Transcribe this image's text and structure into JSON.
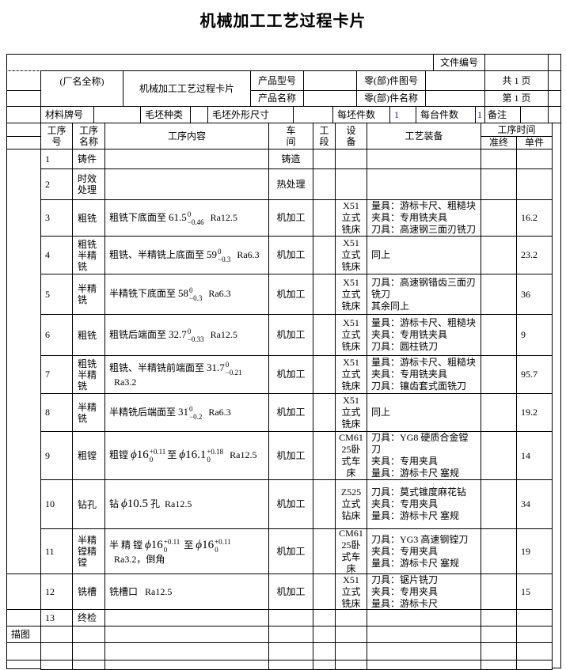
{
  "title": "机械加工工艺过程卡片",
  "header": {
    "doc_no_label": "文件编号",
    "factory": "(厂名全称)",
    "card_name": "机械加工工艺过程卡片",
    "product_model_label": "产品型号",
    "product_name_label": "产品名称",
    "part_drawing_label": "零(部)件图号",
    "part_name_label": "零(部)件名称",
    "total_pages": "共 1 页",
    "page_no": "第 1 页",
    "material_label": "材料牌号",
    "blank_type_label": "毛坯种类",
    "blank_size_label": "毛坯外形尺寸",
    "per_blank_label": "每坯件数",
    "per_blank_value": "1",
    "per_unit_label": "每台件数",
    "per_unit_value": "1",
    "remark_label": "备注"
  },
  "columns": {
    "no": "工序号",
    "name": "工序名称",
    "content": "工序内容",
    "workshop": "车间",
    "section": "工段",
    "equipment": "设备",
    "tooling": "工艺装备",
    "time": "工序时间",
    "prep": "准终",
    "unit": "单件"
  },
  "rows": [
    {
      "no": "1",
      "name": "铸件",
      "workshop": "铸造"
    },
    {
      "no": "2",
      "name": "时效处理",
      "workshop": "热处理"
    },
    {
      "no": "3",
      "name": "粗铣",
      "c": {
        "pre": "粗铣下底面至 ",
        "base": "61.5",
        "up": "0",
        "lo": "−0.46",
        "post": "Ra12.5"
      },
      "workshop": "机加工",
      "equipment": "X51立式铣床",
      "tooling": [
        "量具：游标卡尺、粗糙块",
        "夹具：专用铣夹具",
        "刀具：高速钢三面刃铣刀"
      ],
      "unit": "16.2"
    },
    {
      "no": "4",
      "name": "粗铣半精铣",
      "c": {
        "pre": "粗铣、半精铣上底面至 ",
        "base": "59",
        "up": "0",
        "lo": "−0.3",
        "post": "Ra6.3"
      },
      "workshop": "机加工",
      "equipment": "X51立式铣床",
      "tooling": [
        "同上"
      ],
      "unit": "23.2"
    },
    {
      "no": "5",
      "name": "半精铣",
      "c": {
        "pre": "半精铣下底面至 ",
        "base": "58",
        "up": "0",
        "lo": "−0.3",
        "post": "Ra6.3"
      },
      "workshop": "机加工",
      "equipment": "X51立式铣床",
      "tooling": [
        "刀具：高速钢错齿三面刃铣刀",
        "其余同上"
      ],
      "unit": "36"
    },
    {
      "no": "6",
      "name": "粗铣",
      "c": {
        "pre": "粗铣后端面至 ",
        "base": "32.7",
        "up": "0",
        "lo": "−0.33",
        "post": "Ra12.5"
      },
      "workshop": "机加工",
      "equipment": "X51立式铣床",
      "tooling": [
        "量具：游标卡尺、粗糙块",
        "夹具：专用铣夹具",
        "刀具：圆柱铣刀"
      ],
      "unit": "9"
    },
    {
      "no": "7",
      "name": "粗铣半精铣",
      "c": {
        "pre": "粗铣、半精铣前端面至 ",
        "base": "31.7",
        "up": "0",
        "lo": "−0.21",
        "post": "Ra3.2"
      },
      "workshop": "机加工",
      "equipment": "X51立式铣床",
      "tooling": [
        "量具：游标卡尺、粗糙块",
        "夹具：专用铣夹具",
        "刀具：镶齿套式面铣刀"
      ],
      "unit": "95.7"
    },
    {
      "no": "8",
      "name": "半精铣",
      "c": {
        "pre": "半精铣后端面至 ",
        "base": "31",
        "up": "0",
        "lo": "−0.2",
        "post": "Ra6.3"
      },
      "workshop": "机加工",
      "equipment": "X51立式铣床",
      "tooling": [
        "同上"
      ],
      "unit": "19.2"
    },
    {
      "no": "9",
      "name": "粗镗",
      "c": {
        "pre": "粗镗 ",
        "phi": "ϕ",
        "base": "16",
        "up": "+0.11",
        "lo": "0",
        "mid": "至 ",
        "base2": "16.1",
        "up2": "+0.18",
        "lo2": "0",
        "post": "Ra12.5"
      },
      "workshop": "机加工",
      "equipment": "CM6125卧式车床",
      "tooling": [
        "刀具：YG8 硬质合金镗刀",
        "夹具：专用夹具",
        "量具：游标卡尺 塞规"
      ],
      "unit": "14"
    },
    {
      "no": "10",
      "name": "钻孔",
      "c": {
        "pre": "钻 ",
        "phi": "ϕ",
        "base": "10.5",
        "mid": " 孔",
        "post": "Ra12.5"
      },
      "workshop": "机加工",
      "equipment": "Z525立式钻床",
      "tooling": [
        "刀具：莫式锥度麻花钻",
        "夹具：专用夹具",
        "量具：游标卡尺 塞规"
      ],
      "unit": "34"
    },
    {
      "no": "11",
      "name": "半精镗精镗",
      "c": {
        "pre": "半 精 镗 ",
        "phi": "ϕ",
        "base": "16",
        "up": "+0.11",
        "lo": "0",
        "mid": " 至 ",
        "base2": "16",
        "up2": "+0.11",
        "lo2": "0",
        "post": "Ra3.2，倒角"
      },
      "workshop": "机加工",
      "equipment": "CM6125卧式车床",
      "tooling": [
        "刀具：YG3 高速钢镗刀",
        "夹具：专用夹具",
        "量具：游标卡尺 塞规"
      ],
      "unit": "19"
    },
    {
      "no": "12",
      "name": "铣槽",
      "c": {
        "pre": "铣槽口 ",
        "post": "Ra12.5"
      },
      "workshop": "机加工",
      "equipment": "X51立式铣床",
      "tooling": [
        "刀具：锯片铣刀",
        "夹具：专用夹具",
        "量具：游标卡尺"
      ],
      "unit": "15"
    },
    {
      "no": "13",
      "name": "终检"
    }
  ],
  "footer": {
    "trace_label": "描图"
  }
}
